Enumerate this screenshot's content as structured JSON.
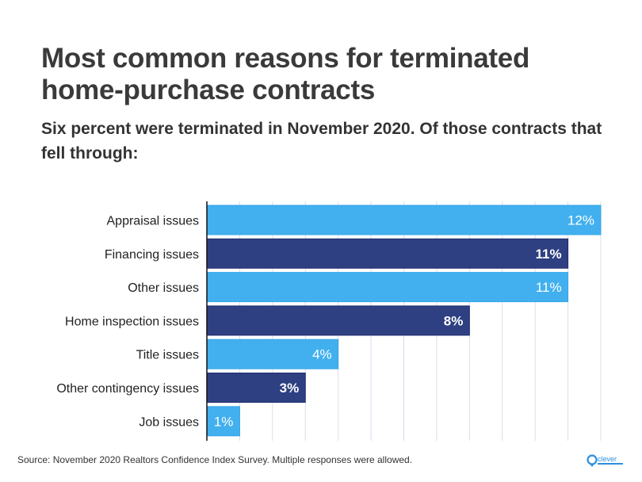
{
  "chart_data": {
    "type": "bar",
    "orientation": "horizontal",
    "title": "Most common reasons for terminated home-purchase contracts",
    "subtitle": "Six percent were terminated in November 2020. Of those contracts that fell through:",
    "categories": [
      "Appraisal issues",
      "Financing issues",
      "Other issues",
      "Home inspection issues",
      "Title issues",
      "Other contingency issues",
      "Job issues"
    ],
    "values": [
      12,
      11,
      11,
      8,
      4,
      3,
      1
    ],
    "data_labels": [
      "12%",
      "11%",
      "11%",
      "8%",
      "4%",
      "3%",
      "1%"
    ],
    "xlim": [
      0,
      12
    ],
    "grid": "vertical, every 1%",
    "colors": [
      "#42b0ee",
      "#2e3f82",
      "#42b0ee",
      "#2e3f82",
      "#42b0ee",
      "#2e3f82",
      "#42b0ee"
    ],
    "source": "Source: November 2020 Realtors Confidence Index Survey. Multiple responses were allowed."
  },
  "logo": {
    "text": "clever",
    "color": "#2a8fe0"
  }
}
